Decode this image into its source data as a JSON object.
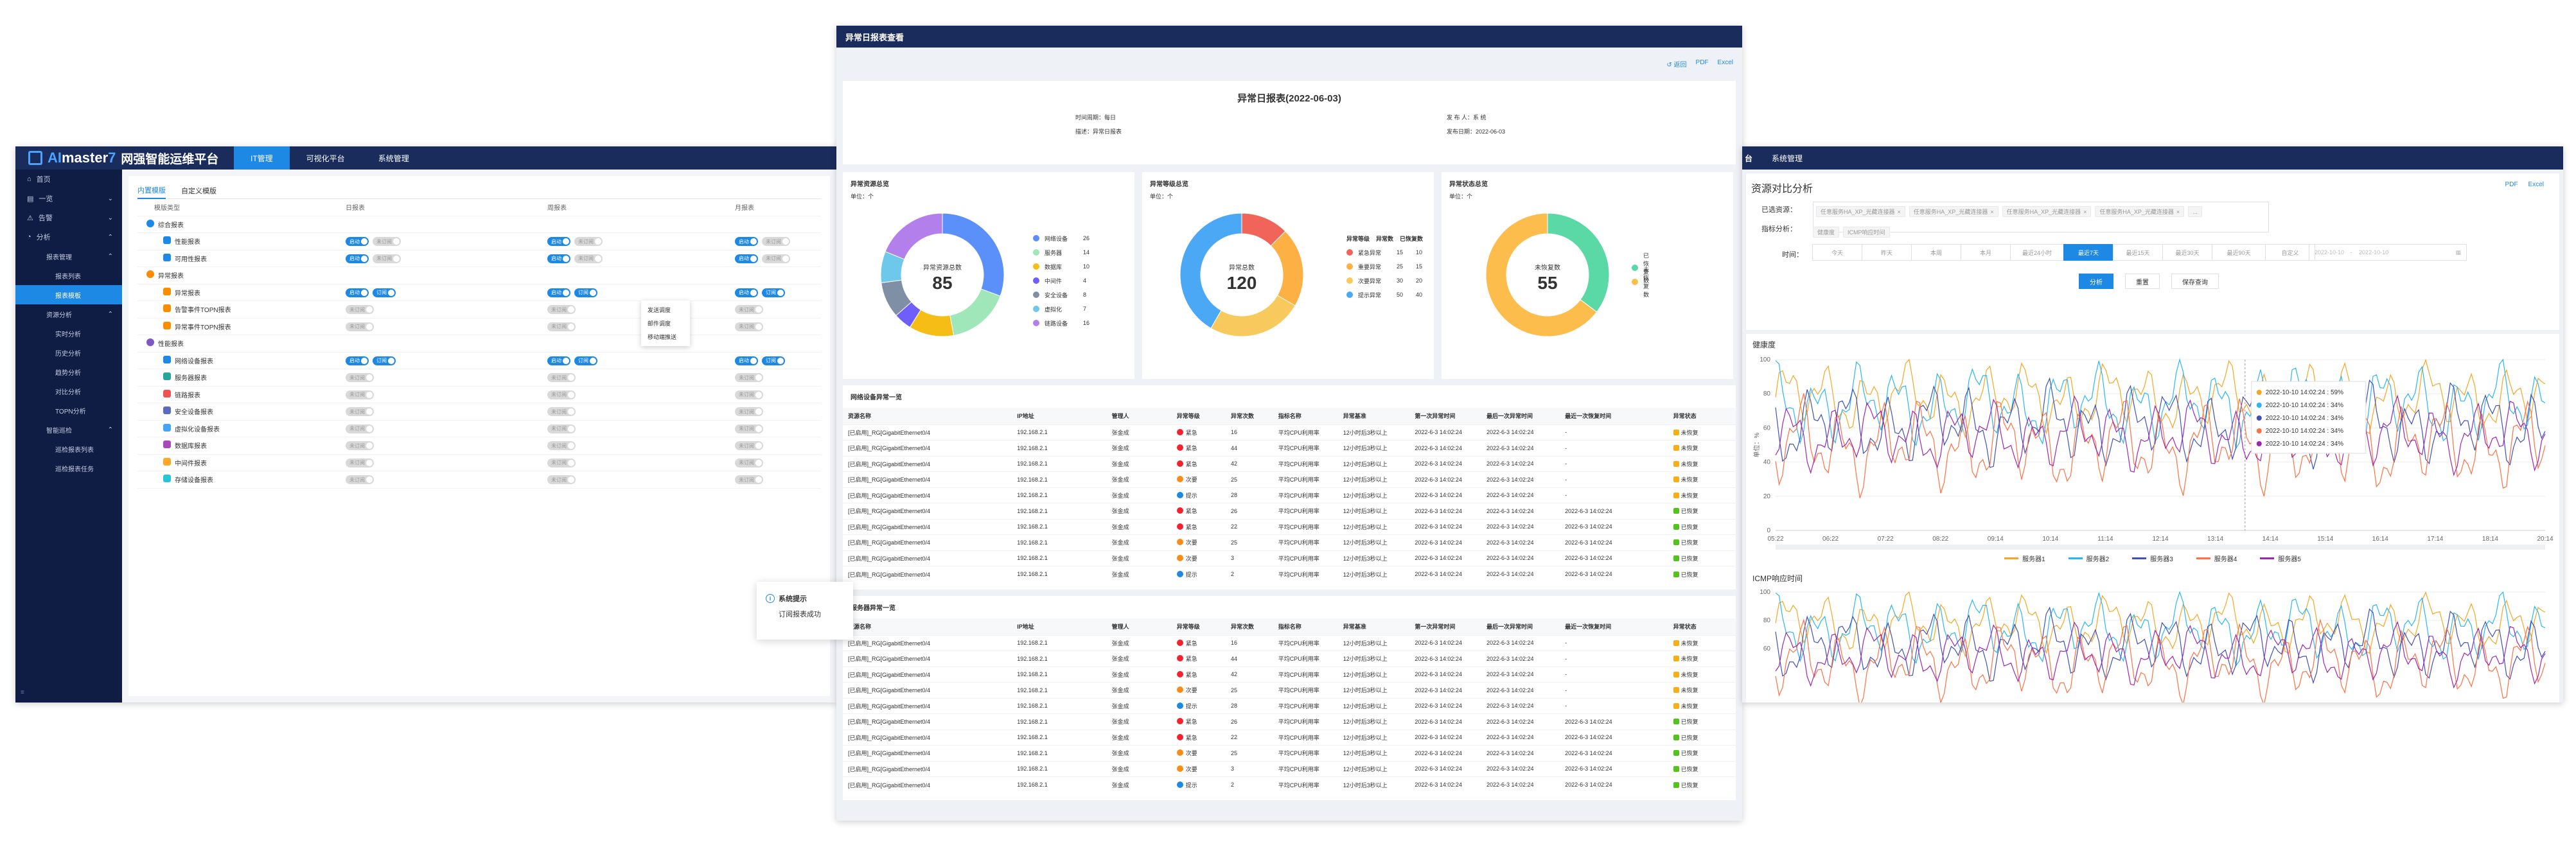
{
  "left": {
    "logo": {
      "brand_a": "AI",
      "brand_b": "master",
      "brand_c": "7",
      "subtitle": "网强智能运维平台"
    },
    "nav_tabs": [
      "IT管理",
      "可视化平台",
      "系统管理"
    ],
    "sidebar": [
      {
        "label": "首页",
        "level": 0
      },
      {
        "label": "一览",
        "level": 0,
        "chevron": "⌄"
      },
      {
        "label": "告警",
        "level": 0,
        "chevron": "⌄"
      },
      {
        "label": "分析",
        "level": 0,
        "chevron": "⌃"
      },
      {
        "label": "报表管理",
        "level": 1,
        "chevron": "⌃"
      },
      {
        "label": "报表列表",
        "level": 2
      },
      {
        "label": "报表模板",
        "level": 2,
        "active": true
      },
      {
        "label": "资源分析",
        "level": 1,
        "chevron": "⌃"
      },
      {
        "label": "实时分析",
        "level": 2
      },
      {
        "label": "历史分析",
        "level": 2
      },
      {
        "label": "趋势分析",
        "level": 2
      },
      {
        "label": "对比分析",
        "level": 2
      },
      {
        "label": "TOPN分析",
        "level": 2
      },
      {
        "label": "智能巡检",
        "level": 1,
        "chevron": "⌃"
      },
      {
        "label": "巡检报表列表",
        "level": 2
      },
      {
        "label": "巡检报表任务",
        "level": 2
      }
    ],
    "subtabs": [
      "内置模版",
      "自定义模版"
    ],
    "headers": [
      "模版类型",
      "日报表",
      "周报表",
      "月报表"
    ],
    "toggle_on": "启动",
    "toggle_off": "未订阅",
    "toggle_sub": "订阅",
    "rows": [
      {
        "label": "综合报表",
        "indent": 0,
        "icon_color": "#1e88e5",
        "kind": "group"
      },
      {
        "label": "性能报表",
        "indent": 1,
        "icon_color": "#1e88e5",
        "kind": "on-off"
      },
      {
        "label": "可用性报表",
        "indent": 1,
        "icon_color": "#1e88e5",
        "kind": "on-off"
      },
      {
        "label": "异常报表",
        "indent": 0,
        "icon_color": "#fb8c00",
        "kind": "group"
      },
      {
        "label": "异常报表",
        "indent": 1,
        "icon_color": "#fb8c00",
        "kind": "on-on"
      },
      {
        "label": "告警事件TOPN报表",
        "indent": 1,
        "icon_color": "#fb8c00",
        "kind": "off"
      },
      {
        "label": "异常事件TOPN报表",
        "indent": 1,
        "icon_color": "#fb8c00",
        "kind": "off"
      },
      {
        "label": "性能报表",
        "indent": 0,
        "icon_color": "#7e57c2",
        "kind": "group"
      },
      {
        "label": "网络设备报表",
        "indent": 1,
        "icon_color": "#1e88e5",
        "kind": "on-on"
      },
      {
        "label": "服务器报表",
        "indent": 1,
        "icon_color": "#26a69a",
        "kind": "off"
      },
      {
        "label": "链路报表",
        "indent": 1,
        "icon_color": "#ef5350",
        "kind": "off"
      },
      {
        "label": "安全设备报表",
        "indent": 1,
        "icon_color": "#5c6bc0",
        "kind": "off"
      },
      {
        "label": "虚拟化设备报表",
        "indent": 1,
        "icon_color": "#42a5f5",
        "kind": "off"
      },
      {
        "label": "数据库报表",
        "indent": 1,
        "icon_color": "#ab47bc",
        "kind": "off"
      },
      {
        "label": "中间件报表",
        "indent": 1,
        "icon_color": "#ffa726",
        "kind": "off"
      },
      {
        "label": "存储设备报表",
        "indent": 1,
        "icon_color": "#26c6da",
        "kind": "off"
      }
    ],
    "context_menu": [
      "发送调度",
      "邮件调度",
      "移动端推送"
    ],
    "toast": {
      "title": "系统提示",
      "message": "订阅报表成功"
    }
  },
  "center": {
    "header_title": "异常日报表查看",
    "export": [
      "↺ 返回",
      "PDF",
      "Excel"
    ],
    "report_title": "异常日报表(2022-06-03)",
    "meta": [
      {
        "label": "时间周期：",
        "value": "每日"
      },
      {
        "label": "描述：",
        "value": "异常日报表"
      },
      {
        "label": "发 布 人：",
        "value": "系 统"
      },
      {
        "label": "发布日期：",
        "value": "2022-06-03"
      }
    ],
    "donuts": [
      {
        "title": "异常资源总览",
        "unit": "单位：个",
        "center_label": "异常资源总数",
        "center_value": "85",
        "slices": [
          {
            "name": "网络设备",
            "value": 26,
            "color": "#5b8ff9"
          },
          {
            "name": "服务器",
            "value": 14,
            "color": "#9fe6b8"
          },
          {
            "name": "数据库",
            "value": 10,
            "color": "#f6bd16"
          },
          {
            "name": "中间件",
            "value": 4,
            "color": "#6f5ef9"
          },
          {
            "name": "安全设备",
            "value": 8,
            "color": "#7f8fa6"
          },
          {
            "name": "虚拟化",
            "value": 7,
            "color": "#6dc8ec"
          },
          {
            "name": "链路设备",
            "value": 16,
            "color": "#b37feb"
          }
        ],
        "table_headers": []
      },
      {
        "title": "异常等级总览",
        "unit": "单位：个",
        "center_label": "异常总数",
        "center_value": "120",
        "slices": [
          {
            "name": "紧急异常",
            "value": 15,
            "extra": "10",
            "color": "#f1645a"
          },
          {
            "name": "重要异常",
            "value": 25,
            "extra": "15",
            "color": "#fdb145"
          },
          {
            "name": "次要异常",
            "value": 30,
            "extra": "20",
            "color": "#f8c95c"
          },
          {
            "name": "提示异常",
            "value": 50,
            "extra": "40",
            "color": "#4aa8f5"
          }
        ],
        "table_headers": [
          "异常等级",
          "异常数",
          "已恢复数"
        ]
      },
      {
        "title": "异常状态总览",
        "unit": "单位：个",
        "center_label": "未恢复数",
        "center_value": "55",
        "slices": [
          {
            "name": "已恢复数",
            "value": 30,
            "color": "#5ad8a6"
          },
          {
            "name": "未恢复数",
            "value": 55,
            "color": "#fdbd4d"
          }
        ],
        "table_headers": []
      }
    ],
    "tables": [
      {
        "title": "网络设备异常一览",
        "headers": [
          "资源名称",
          "IP地址",
          "管理人",
          "异常等级",
          "异常次数",
          "指标名称",
          "异常基准",
          "第一次异常时间",
          "最后一次异常时间",
          "最近一次恢复时间",
          "异常状态"
        ],
        "rows": [
          [
            "[已启用]_RG[GigabitEthernet0/4",
            "192.168.2.1",
            "张金成",
            "紧急",
            "16",
            "平均CPU利用率",
            "12小时后3秒以上",
            "2022-6-3 14:02:24",
            "2022-6-3 14:02:24",
            "-",
            "未恢复"
          ],
          [
            "[已启用]_RG[GigabitEthernet0/4",
            "192.168.2.1",
            "张金成",
            "紧急",
            "44",
            "平均CPU利用率",
            "12小时后3秒以上",
            "2022-6-3 14:02:24",
            "2022-6-3 14:02:24",
            "-",
            "未恢复"
          ],
          [
            "[已启用]_RG[GigabitEthernet0/4",
            "192.168.2.1",
            "张金成",
            "紧急",
            "42",
            "平均CPU利用率",
            "12小时后3秒以上",
            "2022-6-3 14:02:24",
            "2022-6-3 14:02:24",
            "-",
            "未恢复"
          ],
          [
            "[已启用]_RG[GigabitEthernet0/4",
            "192.168.2.1",
            "张金成",
            "次要",
            "25",
            "平均CPU利用率",
            "12小时后3秒以上",
            "2022-6-3 14:02:24",
            "2022-6-3 14:02:24",
            "-",
            "未恢复"
          ],
          [
            "[已启用]_RG[GigabitEthernet0/4",
            "192.168.2.1",
            "张金成",
            "提示",
            "28",
            "平均CPU利用率",
            "12小时后3秒以上",
            "2022-6-3 14:02:24",
            "2022-6-3 14:02:24",
            "-",
            "未恢复"
          ],
          [
            "[已启用]_RG[GigabitEthernet0/4",
            "192.168.2.1",
            "张金成",
            "紧急",
            "26",
            "平均CPU利用率",
            "12小时后3秒以上",
            "2022-6-3 14:02:24",
            "2022-6-3 14:02:24",
            "2022-6-3 14:02:24",
            "已恢复"
          ],
          [
            "[已启用]_RG[GigabitEthernet0/4",
            "192.168.2.1",
            "张金成",
            "紧急",
            "22",
            "平均CPU利用率",
            "12小时后3秒以上",
            "2022-6-3 14:02:24",
            "2022-6-3 14:02:24",
            "2022-6-3 14:02:24",
            "已恢复"
          ],
          [
            "[已启用]_RG[GigabitEthernet0/4",
            "192.168.2.1",
            "张金成",
            "次要",
            "25",
            "平均CPU利用率",
            "12小时后3秒以上",
            "2022-6-3 14:02:24",
            "2022-6-3 14:02:24",
            "2022-6-3 14:02:24",
            "已恢复"
          ],
          [
            "[已启用]_RG[GigabitEthernet0/4",
            "192.168.2.1",
            "张金成",
            "次要",
            "3",
            "平均CPU利用率",
            "12小时后3秒以上",
            "2022-6-3 14:02:24",
            "2022-6-3 14:02:24",
            "2022-6-3 14:02:24",
            "已恢复"
          ],
          [
            "[已启用]_RG[GigabitEthernet0/4",
            "192.168.2.1",
            "张金成",
            "提示",
            "2",
            "平均CPU利用率",
            "12小时后3秒以上",
            "2022-6-3 14:02:24",
            "2022-6-3 14:02:24",
            "2022-6-3 14:02:24",
            "已恢复"
          ]
        ]
      },
      {
        "title": "服务器异常一览",
        "headers": [
          "资源名称",
          "IP地址",
          "管理人",
          "异常等级",
          "异常次数",
          "指标名称",
          "异常基准",
          "第一次异常时间",
          "最后一次异常时间",
          "最近一次恢复时间",
          "异常状态"
        ],
        "rows": [
          [
            "[已启用]_RG[GigabitEthernet0/4",
            "192.168.2.1",
            "张金成",
            "紧急",
            "16",
            "平均CPU利用率",
            "12小时后3秒以上",
            "2022-6-3 14:02:24",
            "2022-6-3 14:02:24",
            "-",
            "未恢复"
          ],
          [
            "[已启用]_RG[GigabitEthernet0/4",
            "192.168.2.1",
            "张金成",
            "紧急",
            "44",
            "平均CPU利用率",
            "12小时后3秒以上",
            "2022-6-3 14:02:24",
            "2022-6-3 14:02:24",
            "-",
            "未恢复"
          ],
          [
            "[已启用]_RG[GigabitEthernet0/4",
            "192.168.2.1",
            "张金成",
            "紧急",
            "42",
            "平均CPU利用率",
            "12小时后3秒以上",
            "2022-6-3 14:02:24",
            "2022-6-3 14:02:24",
            "-",
            "未恢复"
          ],
          [
            "[已启用]_RG[GigabitEthernet0/4",
            "192.168.2.1",
            "张金成",
            "次要",
            "25",
            "平均CPU利用率",
            "12小时后3秒以上",
            "2022-6-3 14:02:24",
            "2022-6-3 14:02:24",
            "-",
            "未恢复"
          ],
          [
            "[已启用]_RG[GigabitEthernet0/4",
            "192.168.2.1",
            "张金成",
            "提示",
            "28",
            "平均CPU利用率",
            "12小时后3秒以上",
            "2022-6-3 14:02:24",
            "2022-6-3 14:02:24",
            "-",
            "未恢复"
          ],
          [
            "[已启用]_RG[GigabitEthernet0/4",
            "192.168.2.1",
            "张金成",
            "紧急",
            "26",
            "平均CPU利用率",
            "12小时后3秒以上",
            "2022-6-3 14:02:24",
            "2022-6-3 14:02:24",
            "2022-6-3 14:02:24",
            "已恢复"
          ],
          [
            "[已启用]_RG[GigabitEthernet0/4",
            "192.168.2.1",
            "张金成",
            "紧急",
            "22",
            "平均CPU利用率",
            "12小时后3秒以上",
            "2022-6-3 14:02:24",
            "2022-6-3 14:02:24",
            "2022-6-3 14:02:24",
            "已恢复"
          ],
          [
            "[已启用]_RG[GigabitEthernet0/4",
            "192.168.2.1",
            "张金成",
            "次要",
            "25",
            "平均CPU利用率",
            "12小时后3秒以上",
            "2022-6-3 14:02:24",
            "2022-6-3 14:02:24",
            "2022-6-3 14:02:24",
            "已恢复"
          ],
          [
            "[已启用]_RG[GigabitEthernet0/4",
            "192.168.2.1",
            "张金成",
            "次要",
            "3",
            "平均CPU利用率",
            "12小时后3秒以上",
            "2022-6-3 14:02:24",
            "2022-6-3 14:02:24",
            "2022-6-3 14:02:24",
            "已恢复"
          ],
          [
            "[已启用]_RG[GigabitEthernet0/4",
            "192.168.2.1",
            "张金成",
            "提示",
            "2",
            "平均CPU利用率",
            "12小时后3秒以上",
            "2022-6-3 14:02:24",
            "2022-6-3 14:02:24",
            "2022-6-3 14:02:24",
            "已恢复"
          ]
        ]
      }
    ],
    "level_colors": {
      "紧急": "#f5222d",
      "次要": "#fa8c16",
      "提示": "#1e88e5"
    },
    "status_colors": {
      "未恢复": "#faad14",
      "已恢复": "#52c41a"
    }
  },
  "right": {
    "nav": [
      "台",
      "系统管理"
    ],
    "title": "资源对比分析",
    "export": [
      "PDF",
      "Excel"
    ],
    "selected_label": "已选资源：",
    "selected_chips": [
      "任意服务HA_XP_光藏连接器",
      "任意服务HA_XP_光藏连接器",
      "任意服务HA_XP_光藏连接器",
      "任意服务HA_XP_光藏连接器",
      "..."
    ],
    "metric_label": "指标分析：",
    "metric_chips": [
      "健康度",
      "ICMP响应时间"
    ],
    "time_label": "时间：",
    "time_buttons": [
      "今天",
      "昨天",
      "本周",
      "本月",
      "最近24小时",
      "最近7天",
      "最近15天",
      "最近30天",
      "最近90天",
      "自定义"
    ],
    "time_active": 5,
    "date_from": "2022-10-10",
    "date_to": "2022-10-10",
    "actions": [
      "分析",
      "重置",
      "保存查询"
    ],
    "chart_data": [
      {
        "type": "line",
        "title": "健康度",
        "ylabel": "单位：%",
        "ylim": [
          0,
          100
        ],
        "yticks": [
          0,
          20,
          40,
          60,
          80,
          100
        ],
        "x": [
          "05:22",
          "06:22",
          "07:22",
          "08:22",
          "09:14",
          "10:14",
          "11:14",
          "12:14",
          "13:14",
          "14:14",
          "15:14",
          "16:14",
          "17:14",
          "18:14",
          "20:14"
        ],
        "series": [
          {
            "name": "服务器1",
            "color": "#f5a623",
            "base": 78,
            "amp": 12
          },
          {
            "name": "服务器2",
            "color": "#29b6f6",
            "base": 74,
            "amp": 14
          },
          {
            "name": "服务器3",
            "color": "#3f51b5",
            "base": 62,
            "amp": 14
          },
          {
            "name": "服务器4",
            "color": "#ff7043",
            "base": 50,
            "amp": 16
          },
          {
            "name": "服务器5",
            "color": "#9c27b0",
            "base": 56,
            "amp": 12
          }
        ],
        "tooltip": [
          {
            "time": "2022-10-10 14:02:24",
            "value": "59%"
          },
          {
            "time": "2022-10-10 14:02:24",
            "value": "34%"
          },
          {
            "time": "2022-10-10 14:02:24",
            "value": "34%"
          },
          {
            "time": "2022-10-10 14:02:24",
            "value": "34%"
          },
          {
            "time": "2022-10-10 14:02:24",
            "value": "34%"
          }
        ]
      },
      {
        "type": "line",
        "title": "ICMP响应时间",
        "ylim": [
          0,
          100
        ],
        "yticks": [
          60,
          80,
          100
        ]
      }
    ]
  }
}
